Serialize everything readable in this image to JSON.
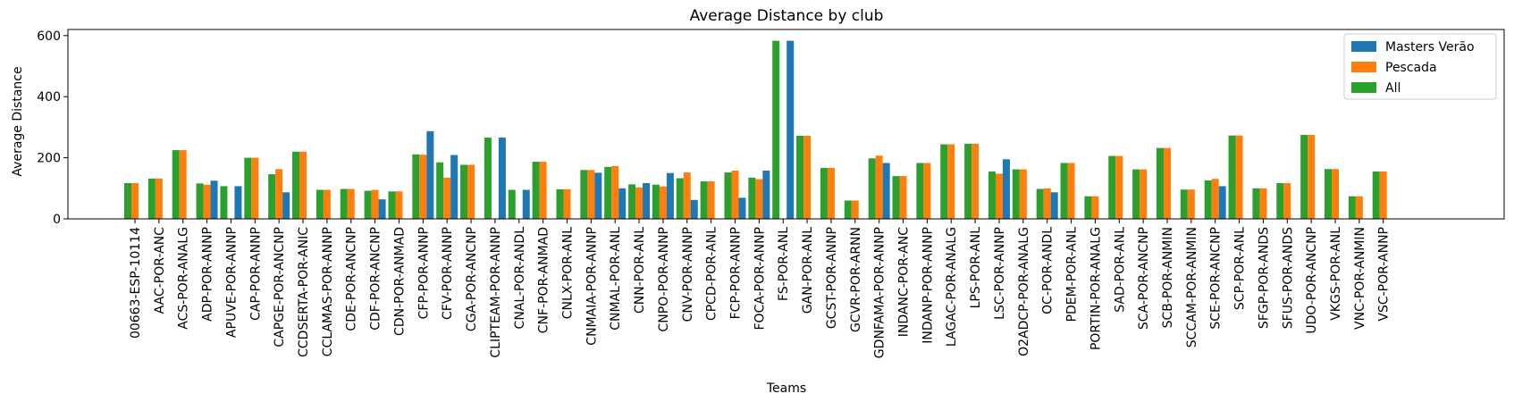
{
  "chart_data": {
    "type": "bar",
    "title": "Average Distance by club",
    "xlabel": "Teams",
    "ylabel": "Average Distance",
    "ylim": [
      0,
      620
    ],
    "yticks": [
      0,
      200,
      400,
      600
    ],
    "grid": false,
    "legend": {
      "placement": "top-right",
      "entries": [
        "Masters Verão",
        "Pescada",
        "All"
      ]
    },
    "series_colors": {
      "Masters Verão": "#1f77b4",
      "Pescada": "#ff7f0e",
      "All": "#2ca02c"
    },
    "categories": [
      "00663-ESP-10114",
      "AAC-POR-ANC",
      "ACS-POR-ANALG",
      "ADP-POR-ANNP",
      "APUVE-POR-ANNP",
      "CAP-POR-ANNP",
      "CAPGE-POR-ANCNP",
      "CCDSERTA-POR-ANIC",
      "CCLAMAS-POR-ANNP",
      "CDE-POR-ANCNP",
      "CDF-POR-ANCNP",
      "CDN-POR-ANMAD",
      "CFP-POR-ANNP",
      "CFV-POR-ANNP",
      "CGA-POR-ANCNP",
      "CLIPTEAM-POR-ANNP",
      "CNAL-POR-ANDL",
      "CNF-POR-ANMAD",
      "CNLX-POR-ANL",
      "CNMAIA-POR-ANNP",
      "CNMAL-POR-ANL",
      "CNN-POR-ANL",
      "CNPO-POR-ANNP",
      "CNV-POR-ANNP",
      "CPCD-POR-ANL",
      "FCP-POR-ANNP",
      "FOCA-POR-ANNP",
      "FS-POR-ANL",
      "GAN-POR-ANL",
      "GCST-POR-ANNP",
      "GCVR-POR-ARNN",
      "GDNFAMA-POR-ANNP",
      "INDANC-POR-ANC",
      "INDANP-POR-ANNP",
      "LAGAC-POR-ANALG",
      "LPS-POR-ANL",
      "LSC-POR-ANNP",
      "O2ADCP-POR-ANALG",
      "OC-POR-ANDL",
      "PDEM-POR-ANL",
      "PORTIN-POR-ANALG",
      "SAD-POR-ANL",
      "SCA-POR-ANCNP",
      "SCB-POR-ANMIN",
      "SCCAM-POR-ANMIN",
      "SCE-POR-ANCNP",
      "SCP-POR-ANL",
      "SFGP-POR-ANDS",
      "SFUS-POR-ANDS",
      "UDO-POR-ANCNP",
      "VKGS-POR-ANL",
      "VNC-POR-ANMIN",
      "VSC-POR-ANNP"
    ],
    "series": [
      {
        "name": "All",
        "values": [
          117,
          132,
          225,
          116,
          107,
          200,
          146,
          220,
          95,
          98,
          92,
          90,
          211,
          185,
          177,
          266,
          95,
          187,
          97,
          160,
          170,
          113,
          112,
          133,
          123,
          152,
          135,
          583,
          272,
          167,
          60,
          198,
          140,
          183,
          244,
          246,
          155,
          162,
          98,
          183,
          74,
          206,
          162,
          232,
          96,
          126,
          273,
          100,
          117,
          275,
          163,
          74,
          155
        ]
      },
      {
        "name": "Pescada",
        "values": [
          117,
          132,
          225,
          112,
          null,
          200,
          163,
          220,
          95,
          98,
          95,
          90,
          210,
          135,
          177,
          null,
          null,
          187,
          97,
          160,
          173,
          103,
          106,
          152,
          123,
          158,
          130,
          null,
          272,
          167,
          60,
          207,
          140,
          183,
          244,
          246,
          148,
          162,
          100,
          183,
          74,
          206,
          162,
          232,
          96,
          131,
          273,
          100,
          117,
          275,
          163,
          74,
          155
        ]
      },
      {
        "name": "Masters Verão",
        "values": [
          null,
          null,
          null,
          125,
          107,
          null,
          87,
          null,
          null,
          null,
          64,
          null,
          287,
          209,
          null,
          266,
          95,
          null,
          null,
          151,
          100,
          117,
          150,
          62,
          null,
          69,
          158,
          583,
          null,
          null,
          null,
          183,
          null,
          null,
          null,
          null,
          195,
          null,
          87,
          null,
          null,
          null,
          null,
          null,
          null,
          107,
          null,
          null,
          null,
          null,
          null,
          null,
          null
        ]
      }
    ]
  }
}
